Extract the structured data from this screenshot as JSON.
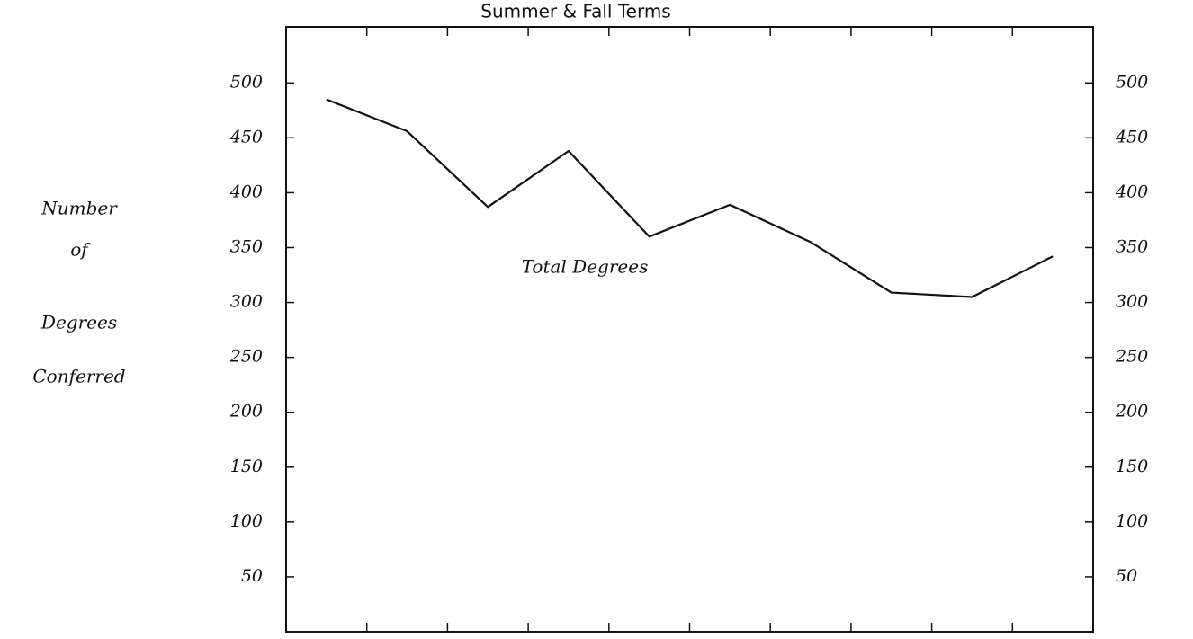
{
  "chart_data": {
    "type": "line",
    "title": "Summer & Fall Terms",
    "y_label": [
      "Number",
      "of",
      "Degrees",
      "Conferred"
    ],
    "annotation": "Total Degrees",
    "categories": [
      null,
      null,
      null,
      null,
      null,
      null,
      null,
      null,
      null,
      null
    ],
    "series": [
      {
        "name": "Total Degrees",
        "color": "#111111",
        "values": [
          485,
          456,
          387,
          438,
          360,
          389,
          355,
          309,
          305,
          342
        ]
      }
    ],
    "ylim": [
      0,
      551
    ],
    "yticks": [
      50,
      100,
      150,
      200,
      250,
      300,
      350,
      400,
      450,
      500
    ],
    "y2lim": [
      0,
      551
    ],
    "y2ticks": [
      50,
      100,
      150,
      200,
      250,
      300,
      350,
      400,
      450,
      500
    ],
    "grid": false
  }
}
